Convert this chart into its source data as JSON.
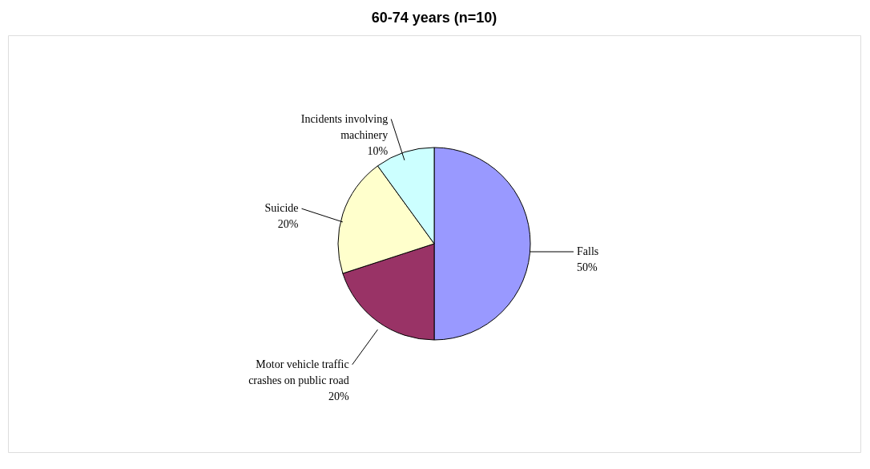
{
  "chart_data": {
    "type": "pie",
    "title": "60-74 years (n=10)",
    "categories": [
      "Falls",
      "Motor vehicle traffic crashes on public road",
      "Suicide",
      "Incidents involving machinery"
    ],
    "values": [
      50,
      20,
      20,
      10
    ],
    "colors": [
      "#9999ff",
      "#993366",
      "#ffffcc",
      "#ccffff"
    ],
    "value_labels": [
      "50%",
      "20%",
      "20%",
      "10%"
    ]
  }
}
